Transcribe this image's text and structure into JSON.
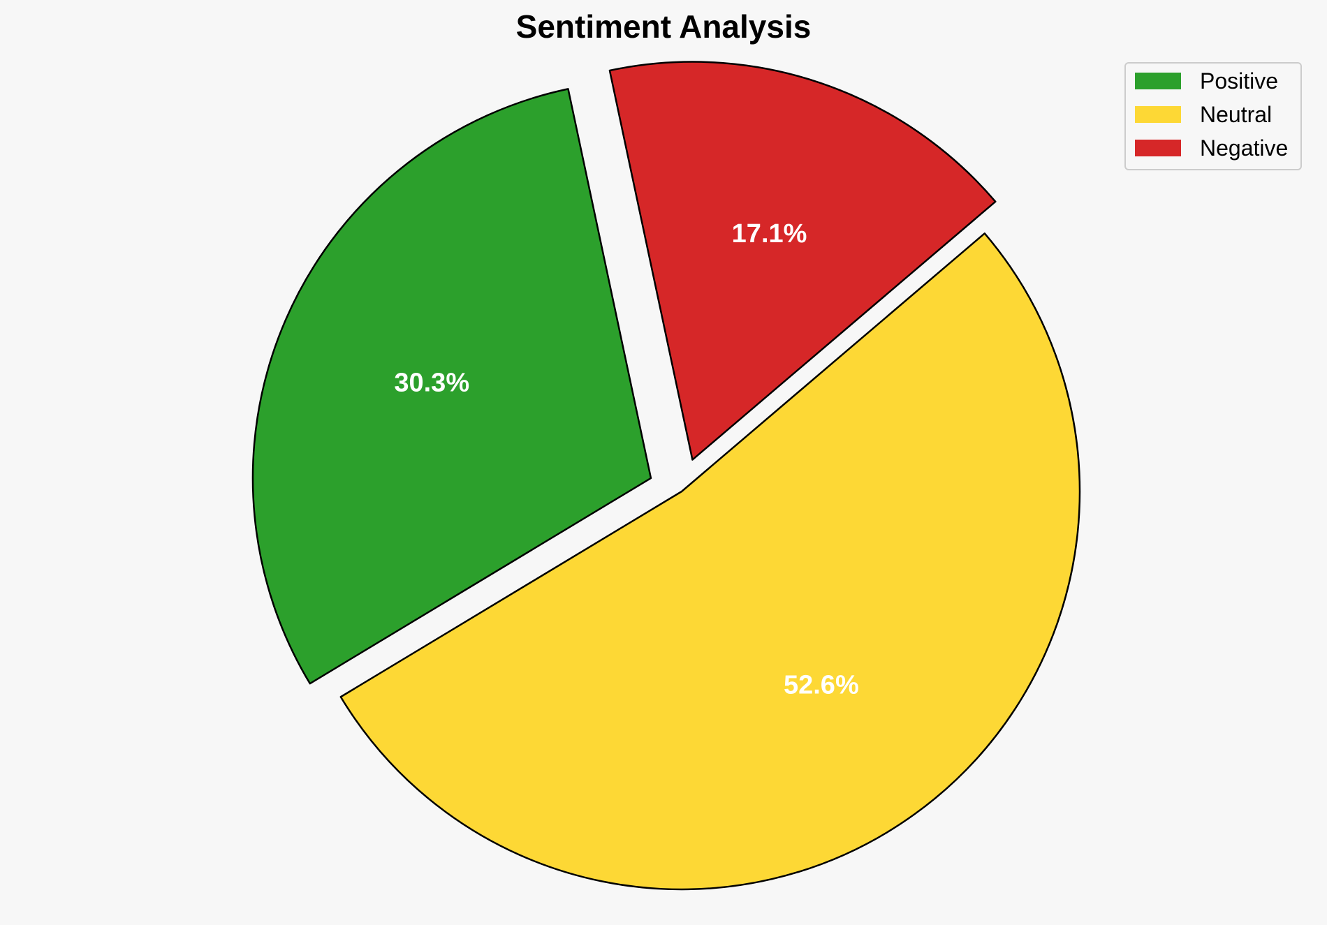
{
  "chart_data": {
    "type": "pie",
    "title": "Sentiment Analysis",
    "categories": [
      "Positive",
      "Neutral",
      "Negative"
    ],
    "values": [
      30.3,
      52.6,
      17.1
    ],
    "labels": [
      "30.3%",
      "52.6%",
      "17.1%"
    ],
    "colors": [
      "#2ca02c",
      "#fdd835",
      "#d62728"
    ],
    "exploded": [
      true,
      false,
      true
    ],
    "start_angle_deg": 102,
    "legend": {
      "position": "top-right",
      "entries": [
        "Positive",
        "Neutral",
        "Negative"
      ]
    }
  }
}
